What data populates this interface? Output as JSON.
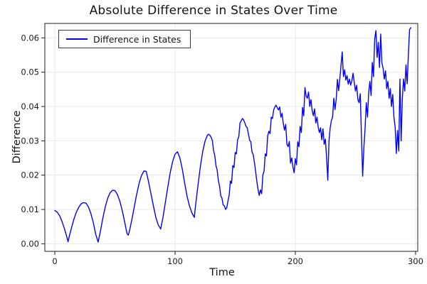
{
  "title": "Absolute Difference in States Over Time",
  "legend": {
    "label": "Difference in States",
    "line_color": "#0000ff"
  },
  "axes": {
    "xlabel": "Time",
    "ylabel": "Difference",
    "x_tick_values": [
      0,
      100,
      200,
      300
    ],
    "x_tick_labels": [
      "0",
      "100",
      "200",
      "300"
    ],
    "y_tick_values": [
      0,
      0.01,
      0.02,
      0.03,
      0.04,
      0.05,
      0.06
    ],
    "y_tick_labels": [
      "0.00",
      "0.01",
      "0.02",
      "0.03",
      "0.04",
      "0.05",
      "0.06"
    ]
  },
  "colors": {
    "series": "#0000ff",
    "frame": "#1f1f1f",
    "grid": "#e9e9e9",
    "tick_text": "#1a1a1a",
    "background": "#ffffff"
  },
  "chart_data": {
    "type": "line",
    "title": "Absolute Difference in States Over Time",
    "xlabel": "Time",
    "ylabel": "Difference",
    "xlim": [
      -8.3,
      301.8
    ],
    "ylim": [
      -0.0022,
      0.0642
    ],
    "grid": true,
    "legend_position": "top-left",
    "series": [
      {
        "name": "Difference in States",
        "color": "#0000ff",
        "points": [
          [
            0,
            0.0097
          ],
          [
            2,
            0.0092
          ],
          [
            4,
            0.0082
          ],
          [
            6,
            0.0065
          ],
          [
            8,
            0.0044
          ],
          [
            10,
            0.002
          ],
          [
            11,
            0.0006
          ],
          [
            12,
            0.0021
          ],
          [
            14,
            0.0048
          ],
          [
            16,
            0.0073
          ],
          [
            18,
            0.0093
          ],
          [
            20,
            0.0107
          ],
          [
            22,
            0.0117
          ],
          [
            24,
            0.012
          ],
          [
            26,
            0.0118
          ],
          [
            28,
            0.0107
          ],
          [
            30,
            0.0088
          ],
          [
            32,
            0.0062
          ],
          [
            34,
            0.0028
          ],
          [
            36,
            0.0005
          ],
          [
            38,
            0.0038
          ],
          [
            40,
            0.0076
          ],
          [
            42,
            0.0108
          ],
          [
            44,
            0.0133
          ],
          [
            46,
            0.0149
          ],
          [
            48,
            0.0156
          ],
          [
            50,
            0.0155
          ],
          [
            52,
            0.0144
          ],
          [
            54,
            0.0125
          ],
          [
            56,
            0.0098
          ],
          [
            58,
            0.0065
          ],
          [
            60,
            0.003
          ],
          [
            61,
            0.0025
          ],
          [
            62,
            0.0036
          ],
          [
            64,
            0.0069
          ],
          [
            66,
            0.0106
          ],
          [
            68,
            0.0143
          ],
          [
            70,
            0.0175
          ],
          [
            72,
            0.0198
          ],
          [
            74,
            0.0212
          ],
          [
            76,
            0.0211
          ],
          [
            78,
            0.018
          ],
          [
            80,
            0.0145
          ],
          [
            82,
            0.011
          ],
          [
            84,
            0.0077
          ],
          [
            86,
            0.0055
          ],
          [
            88,
            0.0043
          ],
          [
            90,
            0.0078
          ],
          [
            92,
            0.0122
          ],
          [
            94,
            0.0166
          ],
          [
            96,
            0.0208
          ],
          [
            98,
            0.024
          ],
          [
            100,
            0.0261
          ],
          [
            102,
            0.0268
          ],
          [
            104,
            0.025
          ],
          [
            106,
            0.0218
          ],
          [
            108,
            0.0176
          ],
          [
            110,
            0.0138
          ],
          [
            112,
            0.011
          ],
          [
            114,
            0.009
          ],
          [
            116,
            0.0077
          ],
          [
            117,
            0.011
          ],
          [
            119,
            0.0169
          ],
          [
            121,
            0.0224
          ],
          [
            123,
            0.0269
          ],
          [
            125,
            0.03
          ],
          [
            127,
            0.0317
          ],
          [
            128,
            0.0319
          ],
          [
            129,
            0.0316
          ],
          [
            130,
            0.031
          ],
          [
            131,
            0.0301
          ],
          [
            132,
            0.0272
          ],
          [
            133,
            0.0257
          ],
          [
            134,
            0.0228
          ],
          [
            135,
            0.0215
          ],
          [
            136,
            0.0184
          ],
          [
            137,
            0.0168
          ],
          [
            138,
            0.014
          ],
          [
            139,
            0.0133
          ],
          [
            140,
            0.0113
          ],
          [
            141,
            0.0111
          ],
          [
            142,
            0.01
          ],
          [
            143,
            0.0105
          ],
          [
            144,
            0.0125
          ],
          [
            145,
            0.0142
          ],
          [
            146,
            0.0183
          ],
          [
            147,
            0.0176
          ],
          [
            148,
            0.0228
          ],
          [
            149,
            0.0222
          ],
          [
            150,
            0.0266
          ],
          [
            151,
            0.0262
          ],
          [
            152,
            0.0303
          ],
          [
            153,
            0.0312
          ],
          [
            154,
            0.0352
          ],
          [
            155,
            0.0358
          ],
          [
            156,
            0.0365
          ],
          [
            157,
            0.0361
          ],
          [
            158,
            0.0352
          ],
          [
            159,
            0.0342
          ],
          [
            160,
            0.0338
          ],
          [
            161,
            0.032
          ],
          [
            162,
            0.0302
          ],
          [
            163,
            0.0297
          ],
          [
            164,
            0.0267
          ],
          [
            165,
            0.026
          ],
          [
            166,
            0.0237
          ],
          [
            167,
            0.021
          ],
          [
            168,
            0.0182
          ],
          [
            169,
            0.0158
          ],
          [
            170,
            0.0141
          ],
          [
            171,
            0.0157
          ],
          [
            172,
            0.0146
          ],
          [
            173,
            0.02
          ],
          [
            174,
            0.0212
          ],
          [
            175,
            0.0262
          ],
          [
            176,
            0.0256
          ],
          [
            177,
            0.0314
          ],
          [
            178,
            0.0328
          ],
          [
            179,
            0.0321
          ],
          [
            180,
            0.0369
          ],
          [
            181,
            0.0365
          ],
          [
            182,
            0.039
          ],
          [
            183,
            0.0399
          ],
          [
            184,
            0.0404
          ],
          [
            185,
            0.0396
          ],
          [
            186,
            0.039
          ],
          [
            187,
            0.0399
          ],
          [
            188,
            0.0369
          ],
          [
            189,
            0.038
          ],
          [
            190,
            0.035
          ],
          [
            191,
            0.0331
          ],
          [
            192,
            0.0348
          ],
          [
            193,
            0.029
          ],
          [
            194,
            0.0283
          ],
          [
            195,
            0.0298
          ],
          [
            196,
            0.0235
          ],
          [
            197,
            0.025
          ],
          [
            198,
            0.0224
          ],
          [
            199,
            0.0207
          ],
          [
            200,
            0.0248
          ],
          [
            201,
            0.023
          ],
          [
            202,
            0.0297
          ],
          [
            203,
            0.0283
          ],
          [
            204,
            0.0342
          ],
          [
            205,
            0.0324
          ],
          [
            206,
            0.0397
          ],
          [
            207,
            0.0373
          ],
          [
            208,
            0.0455
          ],
          [
            209,
            0.043
          ],
          [
            210,
            0.0424
          ],
          [
            211,
            0.0442
          ],
          [
            212,
            0.04
          ],
          [
            213,
            0.042
          ],
          [
            214,
            0.0388
          ],
          [
            215,
            0.0373
          ],
          [
            216,
            0.0393
          ],
          [
            217,
            0.0352
          ],
          [
            218,
            0.0369
          ],
          [
            219,
            0.034
          ],
          [
            220,
            0.0324
          ],
          [
            221,
            0.0338
          ],
          [
            222,
            0.0303
          ],
          [
            223,
            0.0335
          ],
          [
            224,
            0.029
          ],
          [
            225,
            0.0305
          ],
          [
            226,
            0.0252
          ],
          [
            227,
            0.0185
          ],
          [
            228,
            0.03
          ],
          [
            229,
            0.0338
          ],
          [
            230,
            0.0359
          ],
          [
            231,
            0.0369
          ],
          [
            232,
            0.0424
          ],
          [
            233,
            0.0391
          ],
          [
            234,
            0.0421
          ],
          [
            235,
            0.0479
          ],
          [
            236,
            0.0446
          ],
          [
            237,
            0.048
          ],
          [
            238,
            0.052
          ],
          [
            239,
            0.0559
          ],
          [
            240,
            0.0487
          ],
          [
            241,
            0.0507
          ],
          [
            242,
            0.0477
          ],
          [
            243,
            0.049
          ],
          [
            244,
            0.0465
          ],
          [
            245,
            0.048
          ],
          [
            246,
            0.0462
          ],
          [
            247,
            0.0475
          ],
          [
            248,
            0.0497
          ],
          [
            249,
            0.047
          ],
          [
            250,
            0.0445
          ],
          [
            251,
            0.0462
          ],
          [
            252,
            0.042
          ],
          [
            253,
            0.0411
          ],
          [
            254,
            0.0437
          ],
          [
            255,
            0.0314
          ],
          [
            256,
            0.0197
          ],
          [
            257,
            0.028
          ],
          [
            258,
            0.0335
          ],
          [
            259,
            0.0411
          ],
          [
            260,
            0.0369
          ],
          [
            261,
            0.044
          ],
          [
            262,
            0.0473
          ],
          [
            263,
            0.0432
          ],
          [
            264,
            0.0528
          ],
          [
            265,
            0.0487
          ],
          [
            266,
            0.0597
          ],
          [
            267,
            0.0621
          ],
          [
            268,
            0.0543
          ],
          [
            269,
            0.0587
          ],
          [
            270,
            0.0514
          ],
          [
            271,
            0.0611
          ],
          [
            272,
            0.0528
          ],
          [
            273,
            0.0511
          ],
          [
            274,
            0.048
          ],
          [
            275,
            0.0504
          ],
          [
            276,
            0.0452
          ],
          [
            277,
            0.0473
          ],
          [
            278,
            0.0424
          ],
          [
            279,
            0.0452
          ],
          [
            280,
            0.04
          ],
          [
            281,
            0.0435
          ],
          [
            282,
            0.0369
          ],
          [
            283,
            0.034
          ],
          [
            284,
            0.0263
          ],
          [
            285,
            0.033
          ],
          [
            286,
            0.027
          ],
          [
            287,
            0.048
          ],
          [
            288,
            0.03
          ],
          [
            289,
            0.0424
          ],
          [
            290,
            0.048
          ],
          [
            291,
            0.0445
          ],
          [
            292,
            0.0521
          ],
          [
            293,
            0.0466
          ],
          [
            294,
            0.0549
          ],
          [
            295,
            0.0624
          ],
          [
            296,
            0.063
          ]
        ]
      }
    ]
  }
}
